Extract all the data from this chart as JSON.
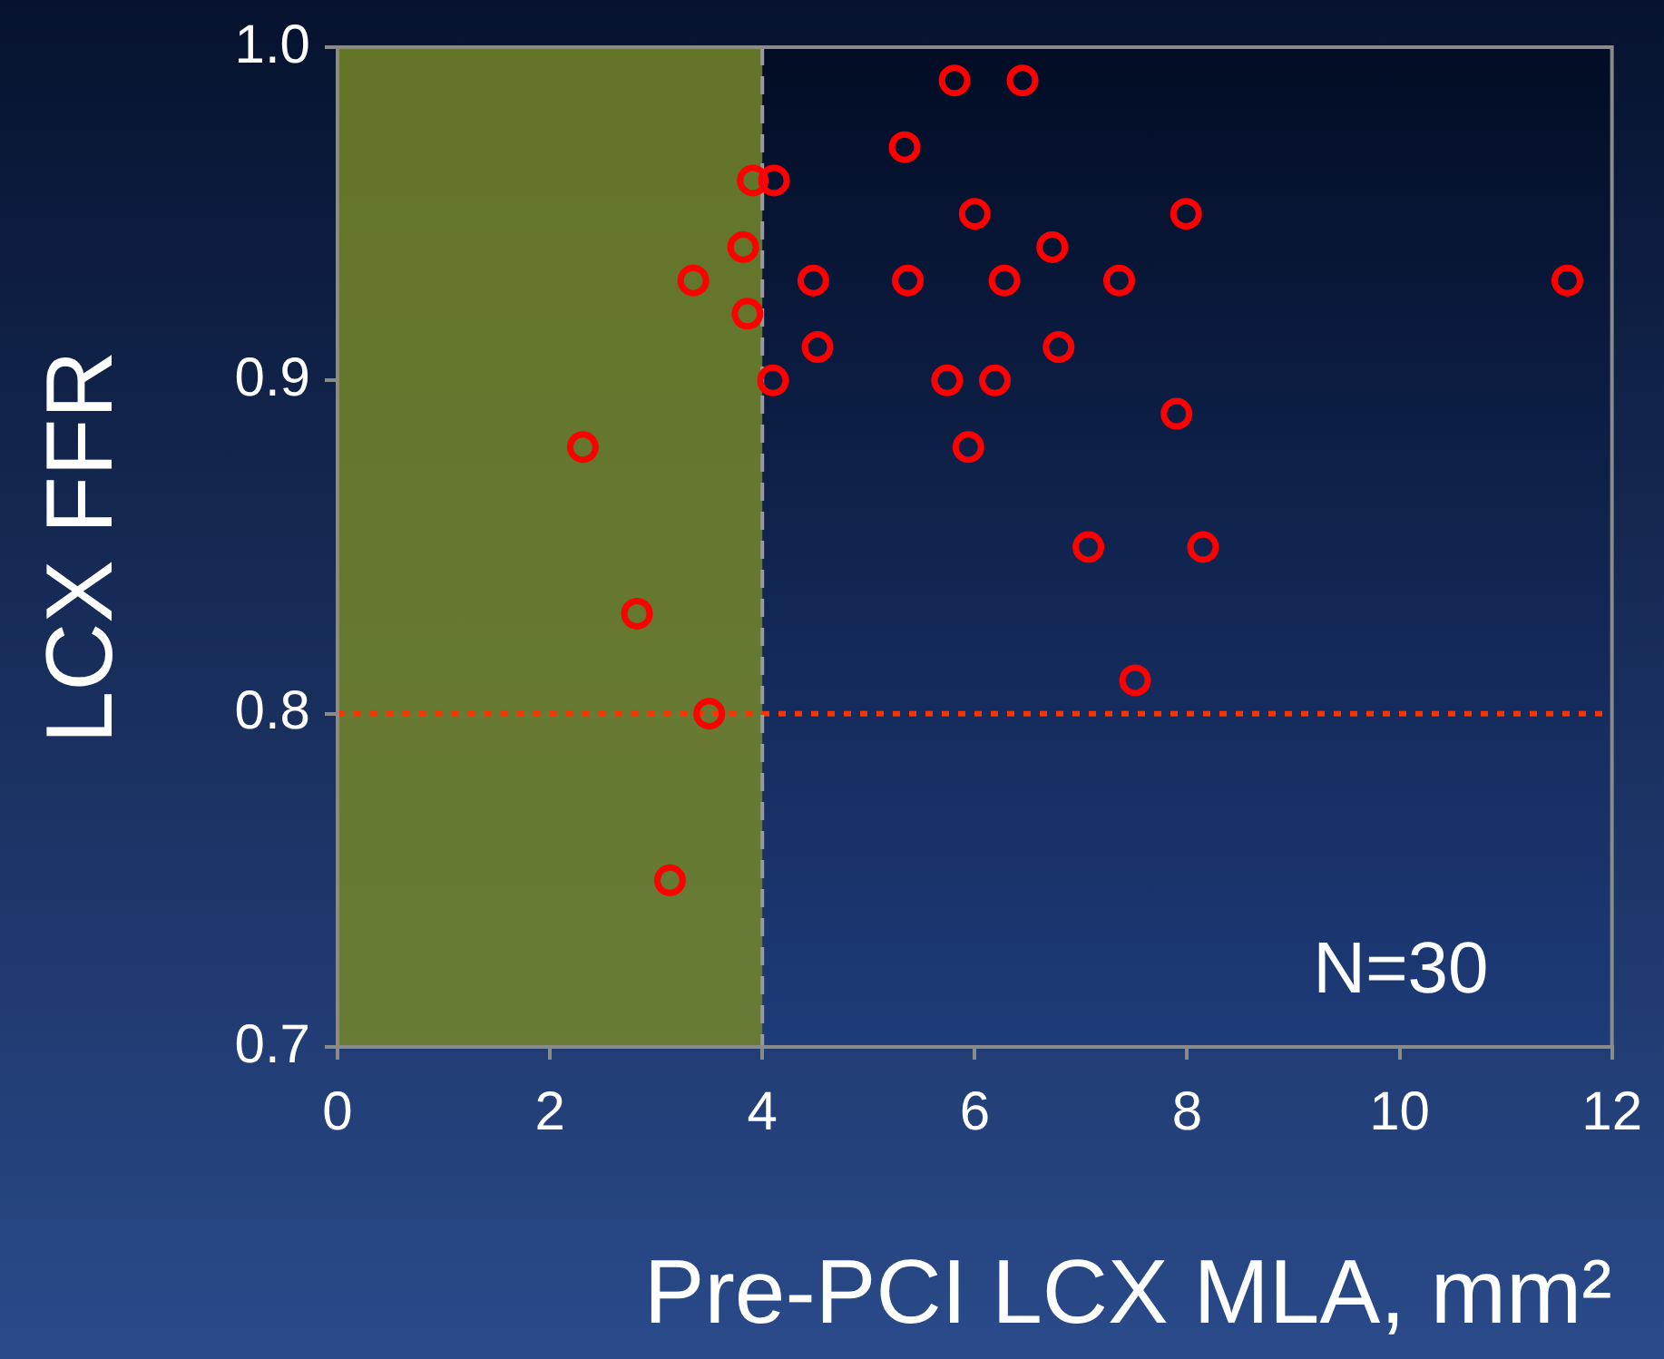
{
  "chart_data": {
    "type": "scatter",
    "xlabel": "Pre-PCI LCX MLA, mm²",
    "ylabel": "LCX FFR",
    "series": [
      {
        "color": "#ff0000",
        "x": [
          2.31,
          2.82,
          3.13,
          3.5,
          3.35,
          3.82,
          3.86,
          3.91,
          4.11,
          4.1,
          4.48,
          4.52,
          5.34,
          5.37,
          5.74,
          5.81,
          5.94,
          6.0,
          6.19,
          6.28,
          6.45,
          6.73,
          6.79,
          7.07,
          7.36,
          7.51,
          7.9,
          7.99,
          8.15,
          11.58
        ],
        "values": [
          0.88,
          0.83,
          0.75,
          0.8,
          0.93,
          0.94,
          0.92,
          0.96,
          0.96,
          0.9,
          0.93,
          0.91,
          0.97,
          0.93,
          0.9,
          0.99,
          0.88,
          0.95,
          0.9,
          0.93,
          0.99,
          0.94,
          0.91,
          0.85,
          0.93,
          0.81,
          0.89,
          0.95,
          0.85,
          0.93
        ]
      }
    ],
    "marker": "circle",
    "xlim": [
      0,
      12
    ],
    "xticks": [
      0,
      2,
      4,
      6,
      8,
      10,
      12
    ],
    "ylim": [
      0.7,
      1
    ],
    "yticks": [
      {
        "value": 0.7,
        "label": "0.7"
      },
      {
        "value": 0.8,
        "label": "0.8"
      },
      {
        "value": 0.9,
        "label": "0.9"
      },
      {
        "value": 1,
        "label": "1.0"
      }
    ],
    "grid": false,
    "legend": false,
    "bands": [
      {
        "axis": "x",
        "from": 0,
        "to": 4,
        "color": "#76872a"
      }
    ],
    "ref_lines": [
      {
        "axis": "y",
        "value": 0.8,
        "color": "#ff3300",
        "line_style": "dotted"
      },
      {
        "axis": "x",
        "value": 4,
        "color": "#9a9a9a",
        "line_style": "dashed"
      }
    ],
    "annotations": [
      "N=30"
    ]
  }
}
